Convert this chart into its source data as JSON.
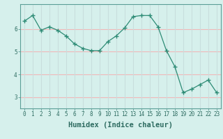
{
  "xlabel": "Humidex (Indice chaleur)",
  "x": [
    0,
    1,
    2,
    3,
    4,
    5,
    6,
    7,
    8,
    9,
    10,
    11,
    12,
    13,
    14,
    15,
    16,
    17,
    18,
    19,
    20,
    21,
    22,
    23
  ],
  "y": [
    6.35,
    6.6,
    5.95,
    6.1,
    5.95,
    5.7,
    5.35,
    5.15,
    5.05,
    5.05,
    5.45,
    5.7,
    6.05,
    6.55,
    6.6,
    6.6,
    6.1,
    5.05,
    4.35,
    3.2,
    3.35,
    3.55,
    3.75,
    3.2
  ],
  "line_color": "#2d8b75",
  "marker": "+",
  "marker_size": 4,
  "bg_color": "#d6f0ec",
  "grid_color_h": "#f0b8b8",
  "grid_color_v": "#c8dedd",
  "ylim": [
    2.5,
    7.1
  ],
  "xlim": [
    -0.5,
    23.5
  ],
  "yticks": [
    3,
    4,
    5,
    6
  ],
  "xticks": [
    0,
    1,
    2,
    3,
    4,
    5,
    6,
    7,
    8,
    9,
    10,
    11,
    12,
    13,
    14,
    15,
    16,
    17,
    18,
    19,
    20,
    21,
    22,
    23
  ],
  "tick_fontsize": 5.5,
  "xlabel_fontsize": 7.5,
  "spine_color": "#5a9e96"
}
